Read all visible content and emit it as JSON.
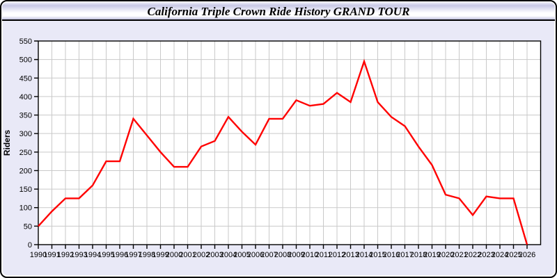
{
  "window": {
    "title": "California Triple Crown Ride History GRAND TOUR"
  },
  "colors": {
    "window_background": "#e9e9f7",
    "titlebar_gradient_top": "#c8c8e6",
    "titlebar_gradient_middle": "#ffffff",
    "titlebar_gradient_bottom": "#c3c3e0",
    "plot_background": "#ffffff",
    "grid_color": "#c9c9c9",
    "axis_color": "#000000",
    "text_color": "#000000",
    "line_color": "#ff0000"
  },
  "chart_data": {
    "type": "line",
    "title": "California Triple Crown Ride History GRAND TOUR",
    "xlabel": "",
    "ylabel": "Riders",
    "ylim": [
      0,
      550
    ],
    "ytick_step": 50,
    "grid": true,
    "legend": "none",
    "x": [
      1990,
      1991,
      1992,
      1993,
      1994,
      1995,
      1996,
      1997,
      1998,
      1999,
      2000,
      2001,
      2002,
      2003,
      2004,
      2005,
      2006,
      2007,
      2008,
      2009,
      2010,
      2011,
      2012,
      2013,
      2014,
      2015,
      2016,
      2017,
      2018,
      2019,
      2020,
      2021,
      2022,
      2023,
      2024,
      2025,
      2026
    ],
    "series": [
      {
        "name": "Riders",
        "color": "#ff0000",
        "values": [
          50,
          90,
          125,
          125,
          160,
          225,
          225,
          340,
          295,
          250,
          210,
          210,
          265,
          280,
          345,
          305,
          270,
          340,
          340,
          390,
          375,
          380,
          410,
          385,
          495,
          385,
          345,
          320,
          265,
          215,
          135,
          125,
          80,
          130,
          125,
          125,
          0
        ]
      }
    ]
  }
}
